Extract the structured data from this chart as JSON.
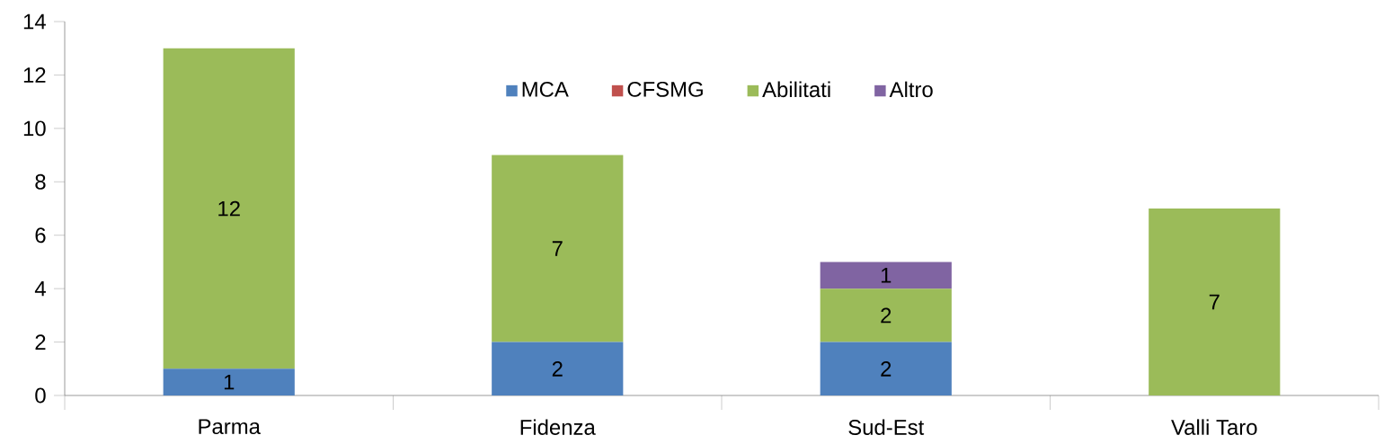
{
  "chart_data": {
    "type": "bar",
    "stacked": true,
    "categories": [
      "Parma",
      "Fidenza",
      "Sud-Est",
      "Valli Taro"
    ],
    "series": [
      {
        "name": "MCA",
        "color": "#4f81bd",
        "values": [
          1,
          2,
          2,
          0
        ],
        "value_labels": [
          "1",
          "2",
          "2",
          null
        ]
      },
      {
        "name": "CFSMG",
        "color": "#c0504d",
        "values": [
          0,
          0,
          0,
          0
        ],
        "value_labels": [
          null,
          null,
          null,
          null
        ]
      },
      {
        "name": "Abilitati",
        "color": "#9bbb59",
        "values": [
          12,
          7,
          2,
          7
        ],
        "value_labels": [
          "12",
          "7",
          "2",
          "7"
        ]
      },
      {
        "name": "Altro",
        "color": "#8064a2",
        "values": [
          0,
          0,
          1,
          0
        ],
        "value_labels": [
          null,
          null,
          "1",
          null
        ]
      }
    ],
    "ylim": [
      0,
      14
    ],
    "yticks": [
      0,
      2,
      4,
      6,
      8,
      10,
      12,
      14
    ],
    "legend": "top"
  }
}
